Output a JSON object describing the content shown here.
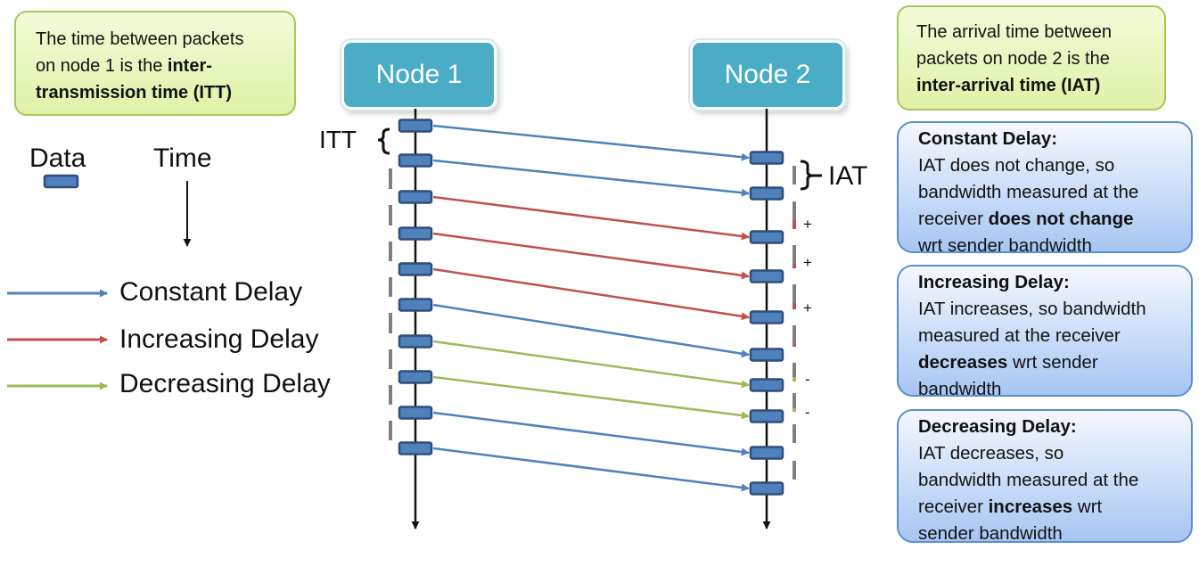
{
  "notes": {
    "itt": {
      "line1": "The time between packets",
      "line2a": "on node 1 is the ",
      "line2b": "inter-",
      "line3": "transmission time (ITT)"
    },
    "iat": {
      "line1": "The arrival time between",
      "line2": "packets on node 2 is the",
      "line3": "inter-arrival time (IAT)"
    }
  },
  "nodes": {
    "node1": "Node 1",
    "node2": "Node 2"
  },
  "labels": {
    "itt": "ITT",
    "iat": "IAT",
    "data": "Data",
    "time": "Time"
  },
  "legend": {
    "constant": {
      "label": "Constant Delay",
      "color": "#4f81bd"
    },
    "increasing": {
      "label": "Increasing Delay",
      "color": "#c0504d"
    },
    "decreasing": {
      "label": "Decreasing Delay",
      "color": "#9bbb59"
    }
  },
  "marks": {
    "plus": "+",
    "minus": "-"
  },
  "info": {
    "constant": {
      "title": "Constant Delay:",
      "l1": "IAT does not change, so",
      "l2": "bandwidth measured at the",
      "l3a": "receiver ",
      "l3b": "does not change",
      "l4": "wrt sender bandwidth"
    },
    "increasing": {
      "title": "Increasing Delay:",
      "l1": "IAT increases, so bandwidth",
      "l2": "measured at the receiver",
      "l3a": "decreases",
      "l3b": " wrt sender",
      "l4": "bandwidth"
    },
    "decreasing": {
      "title": "Decreasing Delay:",
      "l1": "IAT decreases, so",
      "l2": "bandwidth measured at the",
      "l3a": "receiver ",
      "l3b": "increases",
      "l3c": " wrt",
      "l4": "sender bandwidth"
    }
  },
  "packets": {
    "kinds": [
      "constant",
      "constant",
      "increasing",
      "increasing",
      "increasing",
      "constant",
      "decreasing",
      "decreasing",
      "constant",
      "constant"
    ]
  }
}
